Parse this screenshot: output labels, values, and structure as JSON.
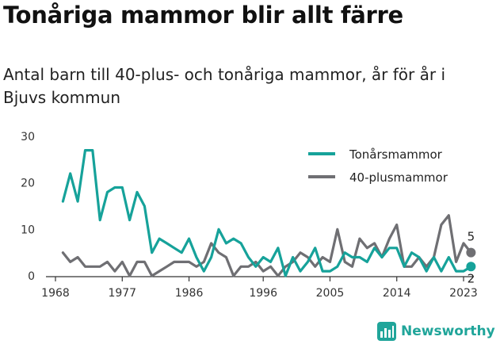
{
  "title": "Tonåriga mammor blir allt färre",
  "subtitle": "Antal barn till 40-plus- och tonåriga mammor, år för år i Bjuvs kommun",
  "brand": {
    "name": "Newsworthy",
    "icon": "newsworthy-logo-icon"
  },
  "colors": {
    "teen": "#16a29a",
    "forty": "#6f6f73",
    "axis": "#333333",
    "grid": "#e2e2e2"
  },
  "chart_data": {
    "type": "line",
    "title": "Tonåriga mammor blir allt färre",
    "subtitle": "Antal barn till 40-plus- och tonåriga mammor, år för år i Bjuvs kommun",
    "xlabel": "",
    "ylabel": "",
    "xlim": [
      1968,
      2023
    ],
    "ylim": [
      0,
      30
    ],
    "x_ticks": [
      1968,
      1977,
      1986,
      1996,
      2005,
      2014,
      2023
    ],
    "y_ticks": [
      0,
      10,
      20,
      30
    ],
    "grid": false,
    "legend": "top-right",
    "x": [
      1969,
      1970,
      1971,
      1972,
      1973,
      1974,
      1975,
      1976,
      1977,
      1978,
      1979,
      1980,
      1981,
      1982,
      1983,
      1984,
      1985,
      1986,
      1987,
      1988,
      1989,
      1990,
      1991,
      1992,
      1993,
      1994,
      1995,
      1996,
      1997,
      1998,
      1999,
      2000,
      2001,
      2002,
      2003,
      2004,
      2005,
      2006,
      2007,
      2008,
      2009,
      2010,
      2011,
      2012,
      2013,
      2014,
      2015,
      2016,
      2017,
      2018,
      2019,
      2020,
      2021,
      2022,
      2023,
      2024
    ],
    "series": [
      {
        "name": "Tonårsmammor",
        "color": "#16a29a",
        "end_label": "2",
        "values": [
          16,
          22,
          16,
          27,
          27,
          12,
          18,
          19,
          19,
          12,
          18,
          15,
          5,
          8,
          7,
          6,
          5,
          8,
          4,
          1,
          4,
          10,
          7,
          8,
          7,
          4,
          2,
          4,
          3,
          6,
          0,
          4,
          1,
          3,
          6,
          1,
          1,
          2,
          5,
          4,
          4,
          3,
          6,
          4,
          6,
          6,
          2,
          5,
          4,
          1,
          4,
          1,
          4,
          1,
          1,
          2
        ]
      },
      {
        "name": "40-plusmammor",
        "color": "#6f6f73",
        "end_label": "5",
        "values": [
          5,
          3,
          4,
          2,
          2,
          2,
          3,
          1,
          3,
          0,
          3,
          3,
          0,
          1,
          2,
          3,
          3,
          3,
          2,
          3,
          7,
          5,
          4,
          0,
          2,
          2,
          3,
          1,
          2,
          0,
          2,
          3,
          5,
          4,
          2,
          4,
          3,
          10,
          3,
          2,
          8,
          6,
          7,
          4,
          8,
          11,
          2,
          2,
          4,
          2,
          4,
          11,
          13,
          3,
          7,
          5
        ]
      }
    ]
  }
}
